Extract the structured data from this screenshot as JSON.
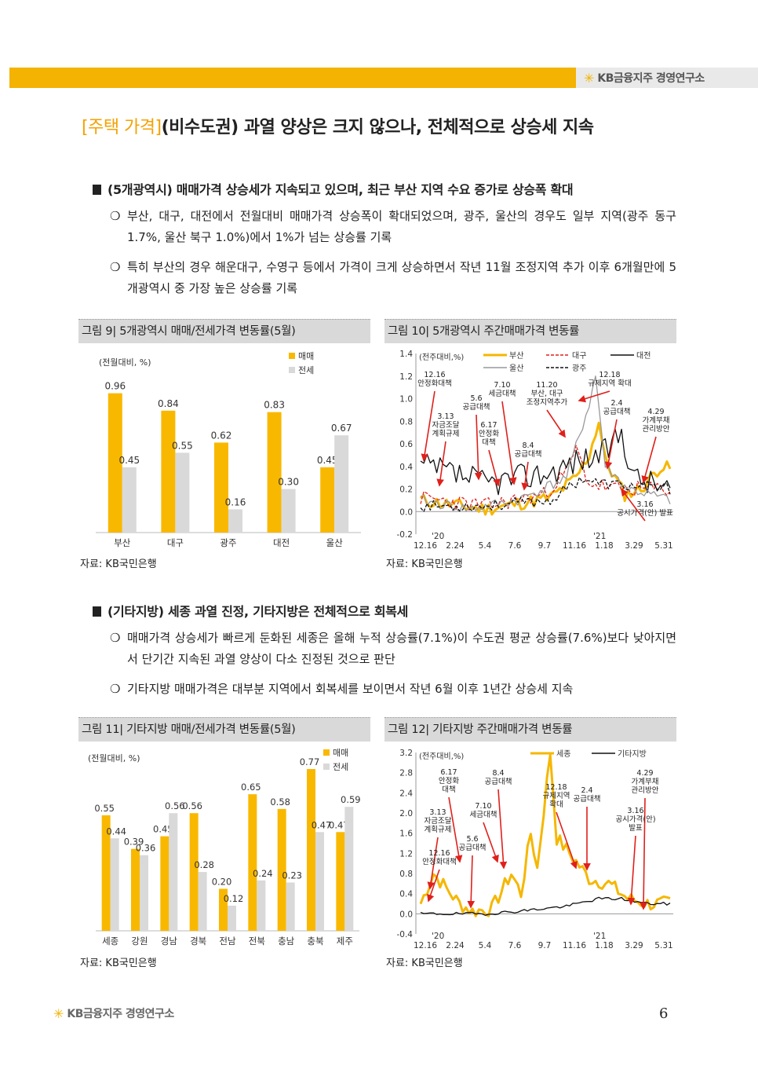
{
  "header": {
    "brand": "KB금융지주 경영연구소"
  },
  "title": {
    "tag": "[주택 가격]",
    "text": "(비수도권) 과열 양상은 크지 않으나, 전체적으로 상승세 지속"
  },
  "section1": {
    "heading": "(5개광역시) 매매가격 상승세가 지속되고 있으며, 최근 부산 지역 수요 증가로 상승폭 확대",
    "bullets": [
      "부산, 대구, 대전에서 전월대비 매매가격 상승폭이 확대되었으며, 광주, 울산의 경우도 일부 지역(광주 동구 1.7%, 울산 북구 1.0%)에서 1%가 넘는 상승률 기록",
      "특히 부산의 경우 해운대구, 수영구 등에서 가격이 크게 상승하면서 작년 11월 조정지역 추가 이후 6개월만에 5개광역시 중 가장 높은 상승률 기록"
    ]
  },
  "section2": {
    "heading": "(기타지방) 세종 과열 진정, 기타지방은 전체적으로 회복세",
    "bullets": [
      "매매가격 상승세가 빠르게 둔화된 세종은 올해 누적 상승률(7.1%)이 수도권 평균 상승률(7.6%)보다 낮아지면서 단기간 지속된 과열 양상이 다소 진정된 것으로 판단",
      "기타지방 매매가격은 대부분 지역에서 회복세를 보이면서 작년 6월 이후 1년간 상승세 지속"
    ]
  },
  "bullet_marker": "❍",
  "colors": {
    "accent": "#f3b300",
    "gray": "#d9d9d9",
    "red": "#e0201b"
  },
  "figures": {
    "fig9": {
      "title": "그림 9| 5개광역시 매매/전세가격 변동률(5월)",
      "source": "자료: KB국민은행"
    },
    "fig10": {
      "title": "그림 10| 5개광역시 주간매매가격 변동률",
      "source": "자료: KB국민은행"
    },
    "fig11": {
      "title": "그림 11| 기타지방 매매/전세가격 변동률(5월)",
      "source": "자료: KB국민은행"
    },
    "fig12": {
      "title": "그림 12| 기타지방 주간매매가격 변동률",
      "source": "자료: KB국민은행"
    }
  },
  "chart_data": [
    {
      "type": "bar",
      "unit_label": "(전월대비, %)",
      "categories": [
        "부산",
        "대구",
        "광주",
        "대전",
        "울산"
      ],
      "series": [
        {
          "name": "매매",
          "values": [
            0.96,
            0.84,
            0.62,
            0.83,
            0.45
          ],
          "color": "#f9b800"
        },
        {
          "name": "전세",
          "values": [
            0.45,
            0.55,
            0.16,
            0.3,
            0.67
          ],
          "color": "#d9d9d9"
        }
      ],
      "ylim": [
        0,
        1.05
      ]
    },
    {
      "type": "line",
      "unit_label": "(전주대비,%)",
      "x_ticks": [
        "12.16",
        "2.24",
        "5.4",
        "7.6",
        "9.7",
        "11.16",
        "1.18",
        "3.29",
        "5.31"
      ],
      "year_labels": [
        "'20",
        "'21"
      ],
      "yticks": [
        "1.4",
        "1.2",
        "1.0",
        "0.8",
        "0.6",
        "0.4",
        "0.2",
        "0.0",
        "-0.2"
      ],
      "ylim": [
        -0.2,
        1.4
      ],
      "series": [
        {
          "name": "부산",
          "color": "#f5b700",
          "style": "thick"
        },
        {
          "name": "대구",
          "color": "#e0201b",
          "style": "dashed"
        },
        {
          "name": "대전",
          "color": "#111111",
          "style": "solid"
        },
        {
          "name": "울산",
          "color": "#999999",
          "style": "solid"
        },
        {
          "name": "광주",
          "color": "#111111",
          "style": "dashed"
        }
      ],
      "annotations": [
        "12.16\n안정화대책",
        "3.13\n자금조달\n계획규제",
        "5.6\n공급대책",
        "6.17\n안정화\n대책",
        "7.10\n세금대책",
        "8.4\n공급대책",
        "11.20\n부산, 대구\n조정지역추가",
        "12.18\n규제지역 확대",
        "2.4\n공급대책",
        "4.29\n가계부채\n관리방안",
        "3.16\n공시가격(안) 발표"
      ]
    },
    {
      "type": "bar",
      "unit_label": "(전월대비, %)",
      "categories": [
        "세종",
        "강원",
        "경남",
        "경북",
        "전남",
        "전북",
        "충남",
        "충북",
        "제주"
      ],
      "series": [
        {
          "name": "매매",
          "values": [
            0.55,
            0.39,
            0.45,
            0.56,
            0.2,
            0.65,
            0.58,
            0.77,
            0.47
          ],
          "color": "#f9b800"
        },
        {
          "name": "전세",
          "values": [
            0.44,
            0.36,
            0.56,
            0.28,
            0.12,
            0.24,
            0.23,
            0.47,
            0.59
          ],
          "color": "#d9d9d9"
        }
      ],
      "ylim": [
        0,
        0.8
      ]
    },
    {
      "type": "line",
      "unit_label": "(전주대비,%)",
      "x_ticks": [
        "12.16",
        "2.24",
        "5.4",
        "7.6",
        "9.7",
        "11.16",
        "1.18",
        "3.29",
        "5.31"
      ],
      "year_labels": [
        "'20",
        "'21"
      ],
      "yticks": [
        "3.2",
        "2.8",
        "2.4",
        "2.0",
        "1.6",
        "1.2",
        "0.8",
        "0.4",
        "0.0",
        "-0.4"
      ],
      "ylim": [
        -0.4,
        3.2
      ],
      "series": [
        {
          "name": "세종",
          "color": "#f5b700",
          "style": "thick"
        },
        {
          "name": "기타지방",
          "color": "#111111",
          "style": "solid"
        }
      ],
      "annotations": [
        "6.17\n안정화\n대책",
        "8.4\n공급대책",
        "7.10\n세금대책",
        "3.13\n자금조달\n계획규제",
        "5.6\n공급대책",
        "12.16\n안정화대책",
        "12.18\n규제지역\n확대",
        "2.4\n공급대책",
        "4.29\n가계부채\n관리방안",
        "3.16\n공시가격(안)\n발표"
      ]
    }
  ],
  "footer": {
    "brand": "KB금융지주 경영연구소",
    "page": "6"
  }
}
